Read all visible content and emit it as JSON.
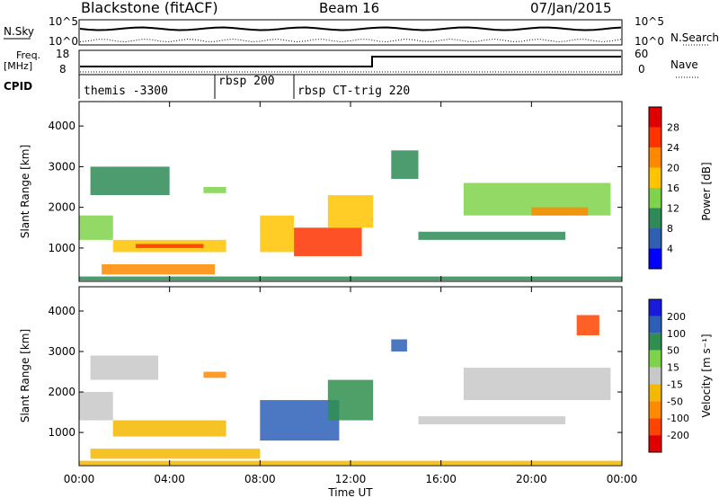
{
  "header": {
    "station": "Blackstone (fitACF)",
    "beam": "Beam 16",
    "date": "07/Jan/2015"
  },
  "noise_panel": {
    "left_label": "N.Sky",
    "left_ticks": [
      "10^5",
      "10^0"
    ],
    "right_label": "N.Search",
    "right_ticks": [
      "10^5",
      "10^0"
    ]
  },
  "freq_panel": {
    "left_label_line1": "Freq.",
    "left_label_line2": "[MHz]",
    "left_ticks": [
      "18",
      "8"
    ],
    "right_label": "Nave",
    "right_ticks": [
      "60",
      "0"
    ],
    "cpid_label": "CPID"
  },
  "cpid_segments": [
    {
      "label": "themis -3300",
      "start_hour": 0.0
    },
    {
      "label": "rbsp 200",
      "start_hour": 6.0
    },
    {
      "label": "rbsp CT-trig 220",
      "start_hour": 9.5
    }
  ],
  "axes": {
    "x_label": "Time UT",
    "x_ticks": [
      "00:00",
      "04:00",
      "08:00",
      "12:00",
      "16:00",
      "20:00",
      "00:00"
    ],
    "y_label": "Slant Range [km]",
    "y_ticks": [
      "1000",
      "2000",
      "3000",
      "4000"
    ]
  },
  "power_colorbar": {
    "label": "Power [dB]",
    "ticks": [
      "4",
      "8",
      "12",
      "16",
      "20",
      "24",
      "28"
    ],
    "colors": [
      "#0000ff",
      "#2f5fb0",
      "#2e8b57",
      "#7fd34a",
      "#ffc400",
      "#ff8800",
      "#ff3300",
      "#e00000"
    ]
  },
  "velocity_colorbar": {
    "label": "Velocity [m s⁻¹]",
    "ticks": [
      "200",
      "100",
      "50",
      "15",
      "-15",
      "-50",
      "-100",
      "-200"
    ],
    "colors": [
      "#1a1adb",
      "#2d5fb8",
      "#2f8f4e",
      "#7fd34a",
      "#c8c8c8",
      "#f5b800",
      "#ff8a00",
      "#ff4400",
      "#e00000"
    ]
  },
  "chart_data": {
    "type": "heatmap",
    "title": "Blackstone (fitACF)",
    "xlabel": "Time UT",
    "ylabel": "Slant Range [km]",
    "xlim": [
      0,
      24
    ],
    "ylim": [
      180,
      4600
    ],
    "panels": [
      {
        "name": "Power",
        "unit": "dB",
        "regions": [
          {
            "t0": 0.0,
            "t1": 24.0,
            "r0": 200,
            "r1": 300,
            "value": 8
          },
          {
            "t0": 1.0,
            "t1": 6.0,
            "r0": 350,
            "r1": 600,
            "value": 20
          },
          {
            "t0": 0.0,
            "t1": 1.5,
            "r0": 1200,
            "r1": 1800,
            "value": 12
          },
          {
            "t0": 1.5,
            "t1": 6.5,
            "r0": 900,
            "r1": 1200,
            "value": 16
          },
          {
            "t0": 2.5,
            "t1": 5.5,
            "r0": 1000,
            "r1": 1100,
            "value": 24
          },
          {
            "t0": 0.5,
            "t1": 4.0,
            "r0": 2300,
            "r1": 3000,
            "value": 8
          },
          {
            "t0": 5.5,
            "t1": 6.5,
            "r0": 2350,
            "r1": 2500,
            "value": 12
          },
          {
            "t0": 8.0,
            "t1": 9.5,
            "r0": 900,
            "r1": 1800,
            "value": 16
          },
          {
            "t0": 9.5,
            "t1": 12.5,
            "r0": 800,
            "r1": 1500,
            "value": 26
          },
          {
            "t0": 11.0,
            "t1": 13.0,
            "r0": 1500,
            "r1": 2300,
            "value": 16
          },
          {
            "t0": 13.8,
            "t1": 15.0,
            "r0": 2700,
            "r1": 3400,
            "value": 8
          },
          {
            "t0": 15.0,
            "t1": 21.5,
            "r0": 1200,
            "r1": 1400,
            "value": 8
          },
          {
            "t0": 17.0,
            "t1": 23.5,
            "r0": 1800,
            "r1": 2600,
            "value": 12
          },
          {
            "t0": 20.0,
            "t1": 22.5,
            "r0": 1800,
            "r1": 2000,
            "value": 20
          }
        ]
      },
      {
        "name": "Velocity",
        "unit": "m s⁻¹",
        "regions": [
          {
            "t0": 0.0,
            "t1": 24.0,
            "r0": 200,
            "r1": 300,
            "value": -30
          },
          {
            "t0": 0.5,
            "t1": 8.0,
            "r0": 350,
            "r1": 600,
            "value": -40
          },
          {
            "t0": 0.0,
            "t1": 1.5,
            "r0": 1300,
            "r1": 2000,
            "value": 0
          },
          {
            "t0": 1.5,
            "t1": 6.5,
            "r0": 900,
            "r1": 1300,
            "value": -40
          },
          {
            "t0": 0.5,
            "t1": 3.5,
            "r0": 2300,
            "r1": 2900,
            "value": 0
          },
          {
            "t0": 5.5,
            "t1": 6.5,
            "r0": 2350,
            "r1": 2500,
            "value": -100
          },
          {
            "t0": 8.0,
            "t1": 11.5,
            "r0": 800,
            "r1": 1800,
            "value": 180
          },
          {
            "t0": 11.0,
            "t1": 13.0,
            "r0": 1300,
            "r1": 2300,
            "value": 60
          },
          {
            "t0": 13.8,
            "t1": 14.5,
            "r0": 3000,
            "r1": 3300,
            "value": 180
          },
          {
            "t0": 15.0,
            "t1": 21.5,
            "r0": 1200,
            "r1": 1400,
            "value": 0
          },
          {
            "t0": 17.0,
            "t1": 23.5,
            "r0": 1800,
            "r1": 2600,
            "value": 0
          },
          {
            "t0": 22.0,
            "t1": 23.0,
            "r0": 3400,
            "r1": 3900,
            "value": -180
          }
        ]
      }
    ]
  }
}
